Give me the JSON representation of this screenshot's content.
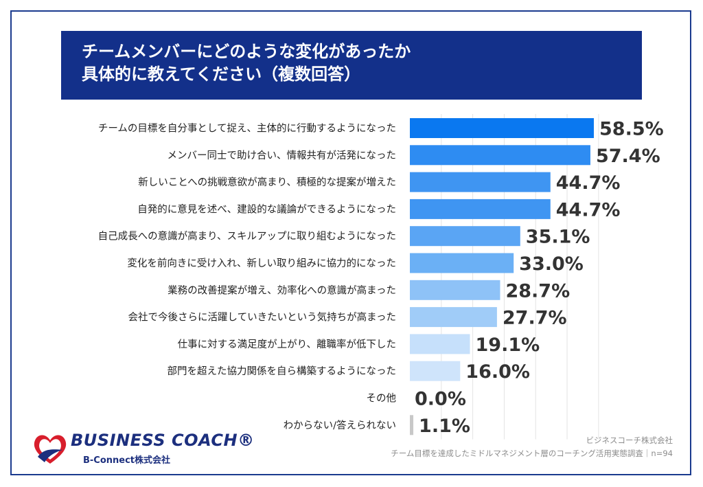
{
  "title": {
    "line1": "チームメンバーにどのような変化があったか",
    "line2": "具体的に教えてください（複数回答）"
  },
  "chart_data": {
    "type": "bar",
    "orientation": "horizontal",
    "categories": [
      "チームの目標を自分事として捉え、主体的に行動するようになった",
      "メンバー同士で助け合い、情報共有が活発になった",
      "新しいことへの挑戦意欲が高まり、積極的な提案が増えた",
      "自発的に意見を述べ、建設的な議論ができるようになった",
      "自己成長への意識が高まり、スキルアップに取り組むようになった",
      "変化を前向きに受け入れ、新しい取り組みに協力的になった",
      "業務の改善提案が増え、効率化への意識が高まった",
      "会社で今後さらに活躍していきたいという気持ちが高まった",
      "仕事に対する満足度が上がり、離職率が低下した",
      "部門を超えた協力関係を自ら構築するようになった",
      "その他",
      "わからない/答えられない"
    ],
    "values": [
      58.5,
      57.4,
      44.7,
      44.7,
      35.1,
      33.0,
      28.7,
      27.7,
      19.1,
      16.0,
      0.0,
      1.1
    ],
    "value_labels": [
      "58.5%",
      "57.4%",
      "44.7%",
      "44.7%",
      "35.1%",
      "33.0%",
      "28.7%",
      "27.7%",
      "19.1%",
      "16.0%",
      "0.0%",
      "1.1%"
    ],
    "colors": [
      "#0a78f0",
      "#2e8cf2",
      "#3f95f2",
      "#3f95f2",
      "#5aa5f4",
      "#6bb0f5",
      "#8ec2f7",
      "#a0ccf8",
      "#c6e0fb",
      "#cfe4fb",
      "#d0e4fb",
      "#c8c8c8"
    ],
    "xlim": [
      0,
      100
    ],
    "grid": true,
    "legend": "none"
  },
  "brand": {
    "name": "BUSINESS COACH®",
    "sub": "B-Connect株式会社"
  },
  "credit": {
    "line1": "ビジネスコーチ株式会社",
    "line2": "チーム目標を達成したミドルマネジメント層のコーチング活用実態調査｜n=94"
  }
}
